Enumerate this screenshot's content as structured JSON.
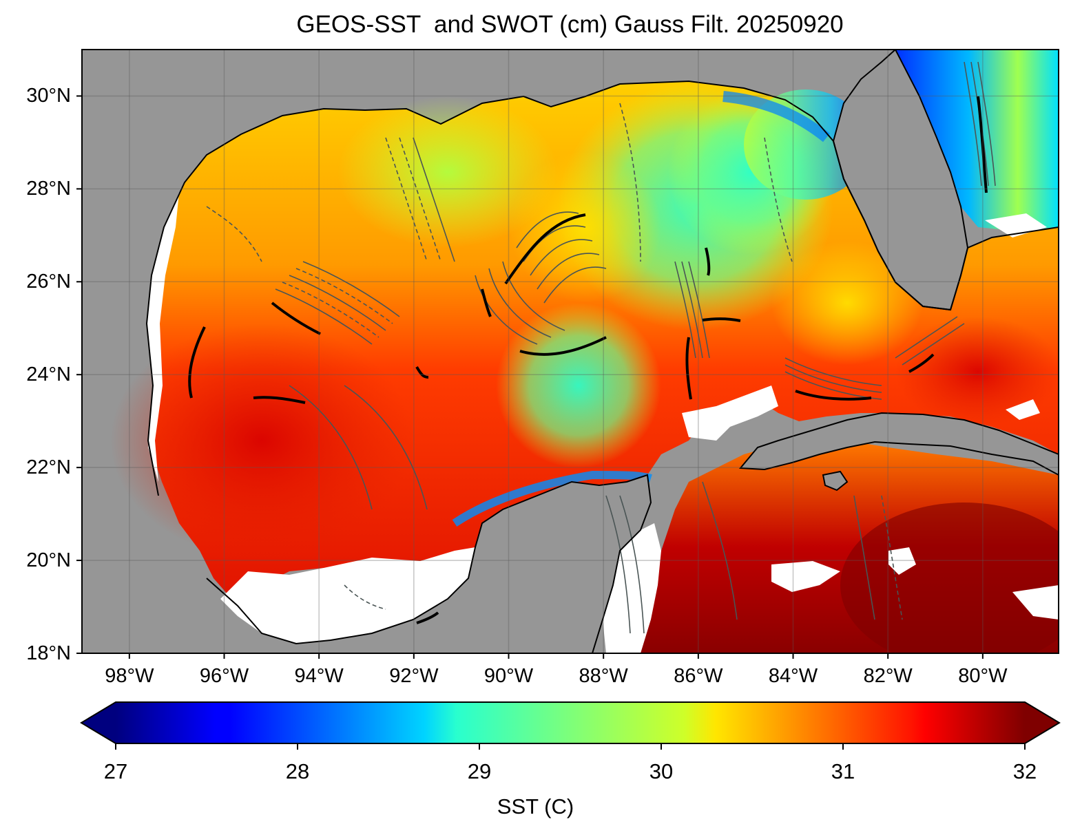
{
  "title": "GEOS-SST  and SWOT (cm) Gauss Filt. 20250920",
  "map": {
    "lon_range": [
      -99,
      -78.4
    ],
    "lat_range": [
      18,
      31
    ],
    "lat_ticks": [
      {
        "value": 30,
        "label": "30°N"
      },
      {
        "value": 28,
        "label": "28°N"
      },
      {
        "value": 26,
        "label": "26°N"
      },
      {
        "value": 24,
        "label": "24°N"
      },
      {
        "value": 22,
        "label": "22°N"
      },
      {
        "value": 20,
        "label": "20°N"
      },
      {
        "value": 18,
        "label": "18°N"
      }
    ],
    "lon_ticks": [
      {
        "value": -98,
        "label": "98°W"
      },
      {
        "value": -96,
        "label": "96°W"
      },
      {
        "value": -94,
        "label": "94°W"
      },
      {
        "value": -92,
        "label": "92°W"
      },
      {
        "value": -90,
        "label": "90°W"
      },
      {
        "value": -88,
        "label": "88°W"
      },
      {
        "value": -86,
        "label": "86°W"
      },
      {
        "value": -84,
        "label": "84°W"
      },
      {
        "value": -82,
        "label": "82°W"
      },
      {
        "value": -80,
        "label": "80°W"
      }
    ],
    "land_color": "#969696",
    "missing_color": "#ffffff",
    "contour_color": "#404a4a",
    "gridlines": true
  },
  "colorbar": {
    "label": "SST (C)",
    "min": 27,
    "max": 32,
    "extend": "both",
    "colormap": "jet",
    "ticks": [
      {
        "value": 27,
        "label": "27"
      },
      {
        "value": 28,
        "label": "28"
      },
      {
        "value": 29,
        "label": "29"
      },
      {
        "value": 30,
        "label": "30"
      },
      {
        "value": 31,
        "label": "31"
      },
      {
        "value": 32,
        "label": "32"
      }
    ],
    "stops": [
      {
        "t": 0.0,
        "color": "#00007f"
      },
      {
        "t": 0.11,
        "color": "#0000ff"
      },
      {
        "t": 0.125,
        "color": "#0000ff"
      },
      {
        "t": 0.34,
        "color": "#00d4ff"
      },
      {
        "t": 0.375,
        "color": "#29ffce"
      },
      {
        "t": 0.5,
        "color": "#7dff7a"
      },
      {
        "t": 0.625,
        "color": "#ceff29"
      },
      {
        "t": 0.66,
        "color": "#ffe600"
      },
      {
        "t": 0.875,
        "color": "#ff1400"
      },
      {
        "t": 0.89,
        "color": "#ff0000"
      },
      {
        "t": 1.0,
        "color": "#7f0000"
      }
    ],
    "over_color": "#7f0000",
    "under_color": "#00007f"
  }
}
